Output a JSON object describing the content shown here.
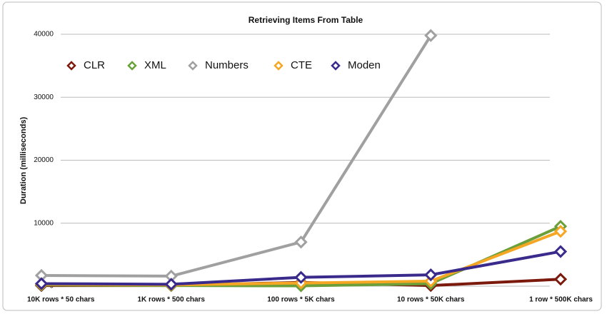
{
  "chart_data": {
    "type": "line",
    "title": "Retrieving Items From Table",
    "y_label": "Duration (milliseconds)",
    "categories": [
      "10K rows * 50 chars",
      "1K rows * 500 chars",
      "100 rows * 5K chars",
      "10 rows * 50K chars",
      "1 row * 500K chars"
    ],
    "series": [
      {
        "name": "CLR",
        "color": "#7b1a0c",
        "values": [
          100,
          100,
          600,
          100,
          1100
        ]
      },
      {
        "name": "XML",
        "color": "#6a9f3a",
        "values": [
          200,
          100,
          50,
          400,
          9500
        ]
      },
      {
        "name": "Numbers",
        "color": "#a0a0a0",
        "values": [
          1700,
          1600,
          7000,
          39800,
          null
        ]
      },
      {
        "name": "CTE",
        "color": "#f5a623",
        "values": [
          300,
          200,
          500,
          800,
          8700
        ]
      },
      {
        "name": "Moden",
        "color": "#3a2a8c",
        "values": [
          400,
          300,
          1400,
          1800,
          5500
        ]
      }
    ],
    "ylim": [
      0,
      40000
    ],
    "yticks": [
      0,
      10000,
      20000,
      30000,
      40000
    ],
    "grid": true,
    "legend": "top"
  }
}
